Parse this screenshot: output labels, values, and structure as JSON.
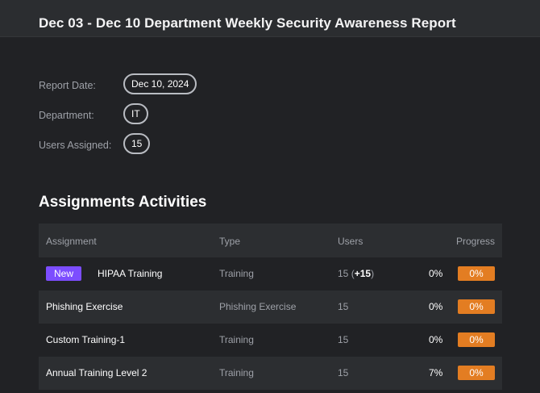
{
  "header": {
    "title": "Dec 03 - Dec 10 Department Weekly Security Awareness Report"
  },
  "meta": [
    {
      "label": "Report Date:",
      "value": "Dec 10, 2024"
    },
    {
      "label": "Department:",
      "value": "IT"
    },
    {
      "label": "Users Assigned:",
      "value": "15"
    }
  ],
  "section": {
    "title": "Assignments Activities"
  },
  "table": {
    "columns": [
      "Assignment",
      "Type",
      "Users",
      "Progress"
    ],
    "rows": [
      {
        "badge": "New",
        "name": "HIPAA Training",
        "type": "Training",
        "users": "15",
        "users_delta": "+15",
        "pct": "0%",
        "progress": "0%"
      },
      {
        "badge": "",
        "name": "Phishing Exercise",
        "type": "Phishing Exercise",
        "users": "15",
        "users_delta": "",
        "pct": "0%",
        "progress": "0%"
      },
      {
        "badge": "",
        "name": "Custom Training-1",
        "type": "Training",
        "users": "15",
        "users_delta": "",
        "pct": "0%",
        "progress": "0%"
      },
      {
        "badge": "",
        "name": "Annual Training Level 2",
        "type": "Training",
        "users": "15",
        "users_delta": "",
        "pct": "7%",
        "progress": "0%"
      }
    ]
  }
}
